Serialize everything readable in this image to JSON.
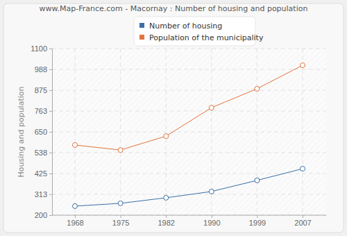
{
  "chart_data": {
    "type": "line",
    "title": "www.Map-France.com - Macornay : Number of housing and population",
    "y_label": "Housing and population",
    "categories": [
      "1968",
      "1975",
      "1982",
      "1990",
      "1999",
      "2007"
    ],
    "series": [
      {
        "name": "Number of housing",
        "color": "#3a6ea5",
        "marker": "circle",
        "values": [
          249,
          264,
          294,
          328,
          388,
          451
        ]
      },
      {
        "name": "Population of the municipality",
        "color": "#e2733c",
        "marker": "circle",
        "values": [
          579,
          552,
          627,
          781,
          883,
          1010
        ]
      }
    ],
    "ylim": [
      200,
      1100
    ],
    "yticks": [
      200,
      313,
      425,
      538,
      650,
      763,
      875,
      988,
      1100
    ],
    "grid": true,
    "legend": "top"
  }
}
